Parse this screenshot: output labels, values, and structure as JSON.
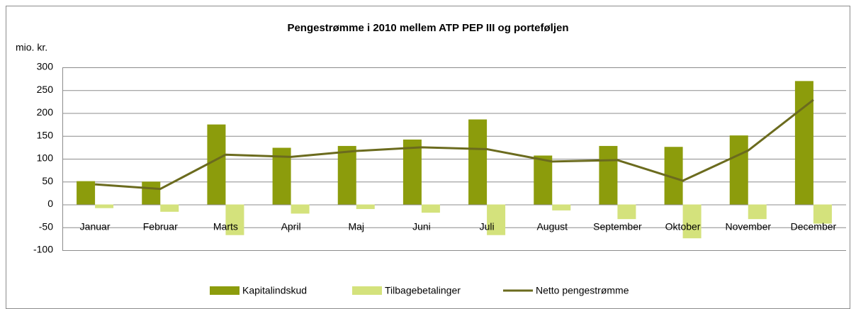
{
  "chart_data": {
    "type": "bar_line",
    "title": "Pengestrømme i 2010 mellem ATP PEP III og porteføljen",
    "y_axis_label": "mio. kr.",
    "categories": [
      "Januar",
      "Februar",
      "Marts",
      "April",
      "Maj",
      "Juni",
      "Juli",
      "August",
      "September",
      "Oktober",
      "November",
      "December"
    ],
    "series": [
      {
        "name": "Kapitalindskud",
        "type": "bar",
        "color": "#8c9c0c",
        "values": [
          51,
          50,
          175,
          124,
          128,
          142,
          186,
          107,
          128,
          126,
          151,
          270
        ]
      },
      {
        "name": "Tilbagebetalinger",
        "type": "bar",
        "color": "#d4e27c",
        "values": [
          -8,
          -16,
          -67,
          -20,
          -10,
          -18,
          -67,
          -13,
          -32,
          -74,
          -32,
          -42
        ]
      },
      {
        "name": "Netto pengestrømme",
        "type": "line",
        "color": "#6b6b1e",
        "values": [
          44,
          34,
          109,
          104,
          117,
          125,
          121,
          94,
          97,
          52,
          118,
          229
        ]
      }
    ],
    "ylim": [
      -100,
      300
    ],
    "yticks": [
      -100,
      -50,
      0,
      50,
      100,
      150,
      200,
      250,
      300
    ],
    "grid": true,
    "legend": "bottom"
  }
}
